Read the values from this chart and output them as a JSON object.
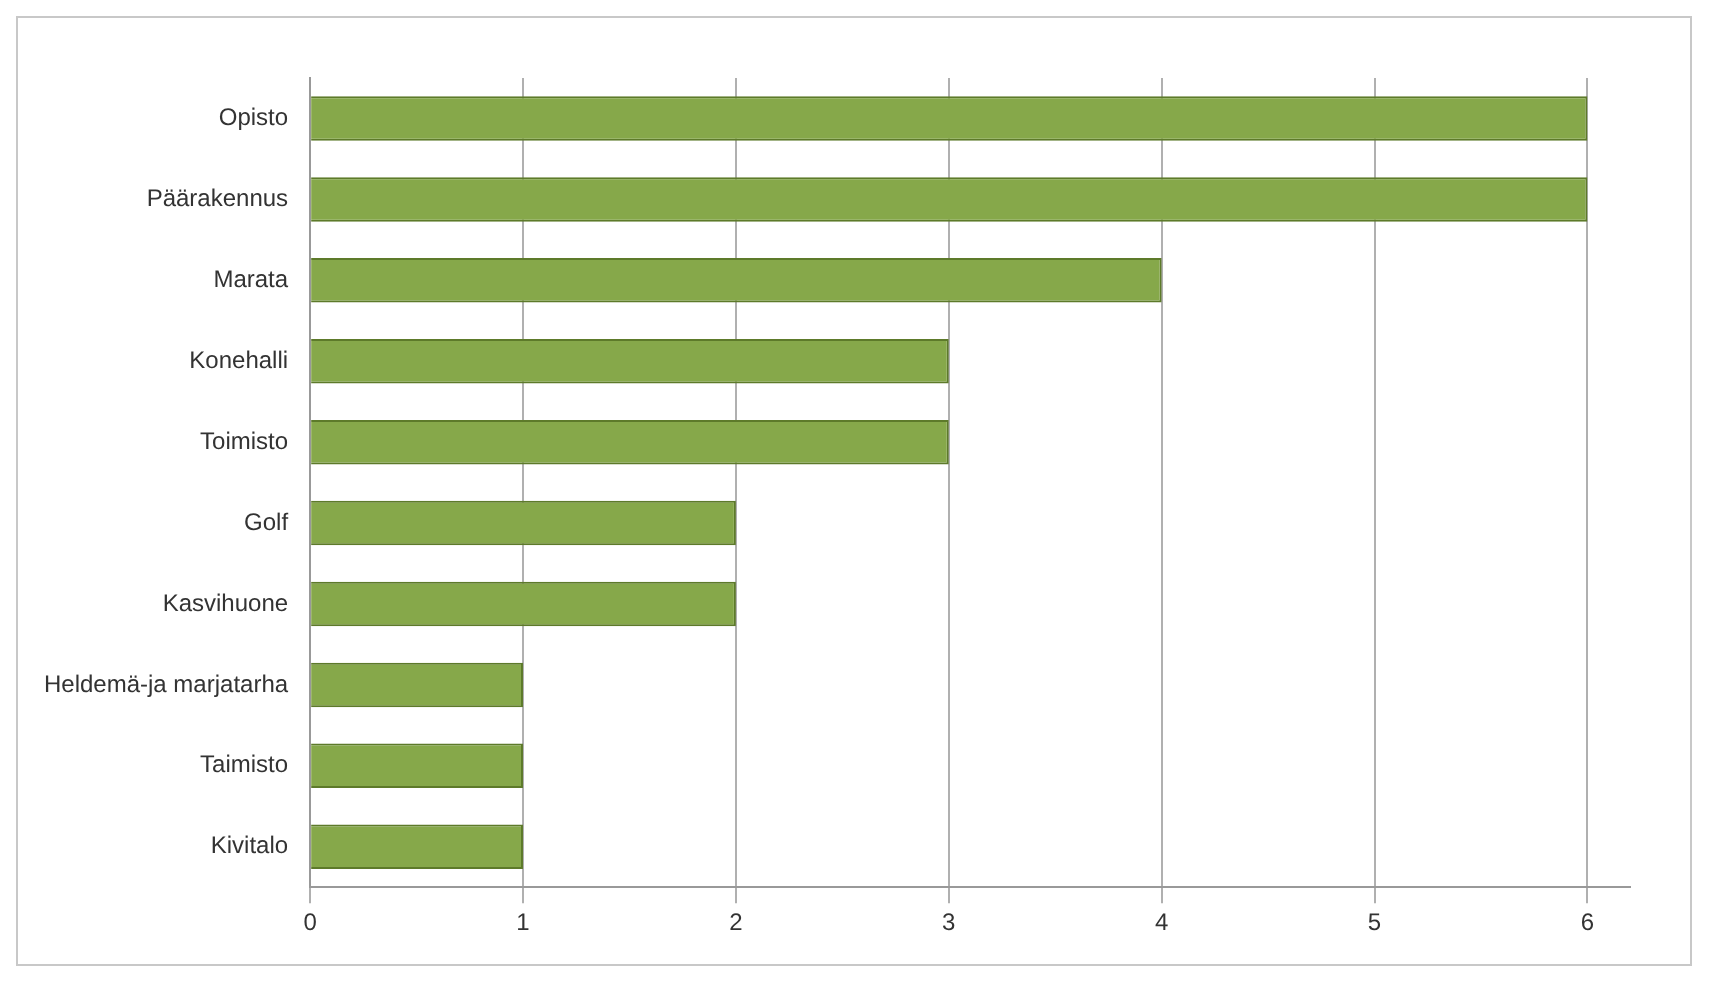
{
  "chart_data": {
    "type": "bar",
    "orientation": "horizontal",
    "categories": [
      "Opisto",
      "Päärakennus",
      "Marata",
      "Konehalli",
      "Toimisto",
      "Golf",
      "Kasvihuone",
      "Heldemä-ja marjatarha",
      "Taimisto",
      "Kivitalo"
    ],
    "values": [
      6,
      6,
      4,
      3,
      3,
      2,
      2,
      1,
      1,
      1
    ],
    "color": "#86a84a",
    "xlim": [
      0,
      6.2
    ],
    "xticks": [
      0,
      1,
      2,
      3,
      4,
      5,
      6
    ],
    "grid": "x",
    "legend": false
  }
}
